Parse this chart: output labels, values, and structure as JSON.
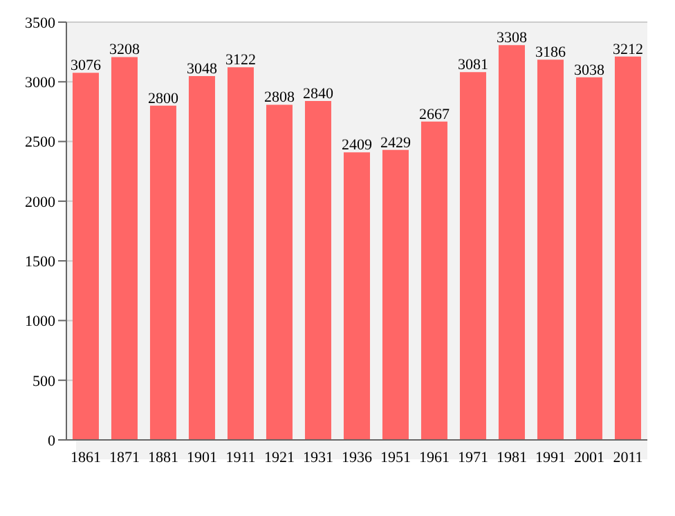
{
  "chart_data": {
    "type": "bar",
    "categories": [
      "1861",
      "1871",
      "1881",
      "1901",
      "1911",
      "1921",
      "1931",
      "1936",
      "1951",
      "1961",
      "1971",
      "1981",
      "1991",
      "2001",
      "2011"
    ],
    "values": [
      3076,
      3208,
      2800,
      3048,
      3122,
      2808,
      2840,
      2409,
      2429,
      2667,
      3081,
      3308,
      3186,
      3038,
      3212
    ],
    "color": "#ff6666",
    "ylim": [
      0,
      3500
    ],
    "yticks": [
      0,
      500,
      1000,
      1500,
      2000,
      2500,
      3000,
      3500
    ],
    "grid": "y",
    "data_labels": true
  }
}
